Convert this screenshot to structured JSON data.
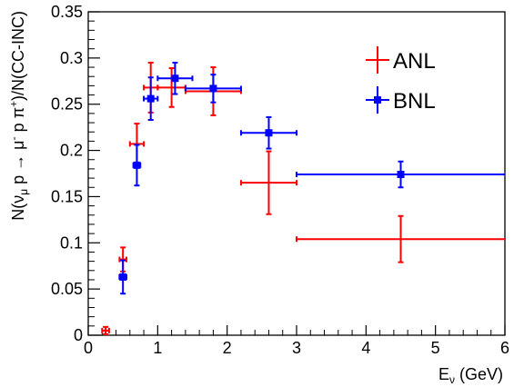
{
  "chart_data": {
    "type": "scatter",
    "xlabel": "E_ν (GeV)",
    "ylabel": "N(ν_μ p → μ⁻ p π⁺)/N(CC-INC)",
    "xlim": [
      0,
      6
    ],
    "ylim": [
      0,
      0.35
    ],
    "xticks": [
      "0",
      "1",
      "2",
      "3",
      "4",
      "5",
      "6"
    ],
    "yticks": [
      "0",
      "0.05",
      "0.1",
      "0.15",
      "0.2",
      "0.25",
      "0.3",
      "0.35"
    ],
    "grid": false,
    "legend_position": "top-right",
    "series": [
      {
        "name": "ANL",
        "color": "#ff0000",
        "marker": "none",
        "points": [
          {
            "x": 0.25,
            "xerr": 0.05,
            "y": 0.005,
            "yerr": 0.004
          },
          {
            "x": 0.5,
            "xerr": 0.05,
            "y": 0.082,
            "yerr": 0.013
          },
          {
            "x": 0.7,
            "xerr": 0.1,
            "y": 0.207,
            "yerr": 0.022
          },
          {
            "x": 0.9,
            "xerr": 0.1,
            "y": 0.268,
            "yerr": 0.027
          },
          {
            "x": 1.2,
            "xerr": 0.2,
            "y": 0.268,
            "yerr": 0.021
          },
          {
            "x": 1.8,
            "xerr": 0.4,
            "y": 0.264,
            "yerr": 0.026
          },
          {
            "x": 2.6,
            "xerr": 0.4,
            "y": 0.165,
            "yerr": 0.034
          },
          {
            "x": 4.5,
            "xerr": 1.5,
            "y": 0.104,
            "yerr": 0.025
          }
        ]
      },
      {
        "name": "BNL",
        "color": "#0000ff",
        "marker": "square",
        "points": [
          {
            "x": 0.5,
            "xerr": 0.05,
            "y": 0.063,
            "yerr": 0.018
          },
          {
            "x": 0.7,
            "xerr": 0.05,
            "y": 0.184,
            "yerr": 0.022
          },
          {
            "x": 0.9,
            "xerr": 0.1,
            "y": 0.256,
            "yerr": 0.023
          },
          {
            "x": 1.25,
            "xerr": 0.25,
            "y": 0.278,
            "yerr": 0.017
          },
          {
            "x": 1.8,
            "xerr": 0.4,
            "y": 0.267,
            "yerr": 0.015
          },
          {
            "x": 2.6,
            "xerr": 0.4,
            "y": 0.219,
            "yerr": 0.017
          },
          {
            "x": 4.5,
            "xerr": 1.5,
            "y": 0.174,
            "yerr": 0.014
          }
        ]
      }
    ]
  },
  "legend": [
    {
      "label": "ANL",
      "color": "#ff0000"
    },
    {
      "label": "BNL",
      "color": "#0000ff"
    }
  ]
}
